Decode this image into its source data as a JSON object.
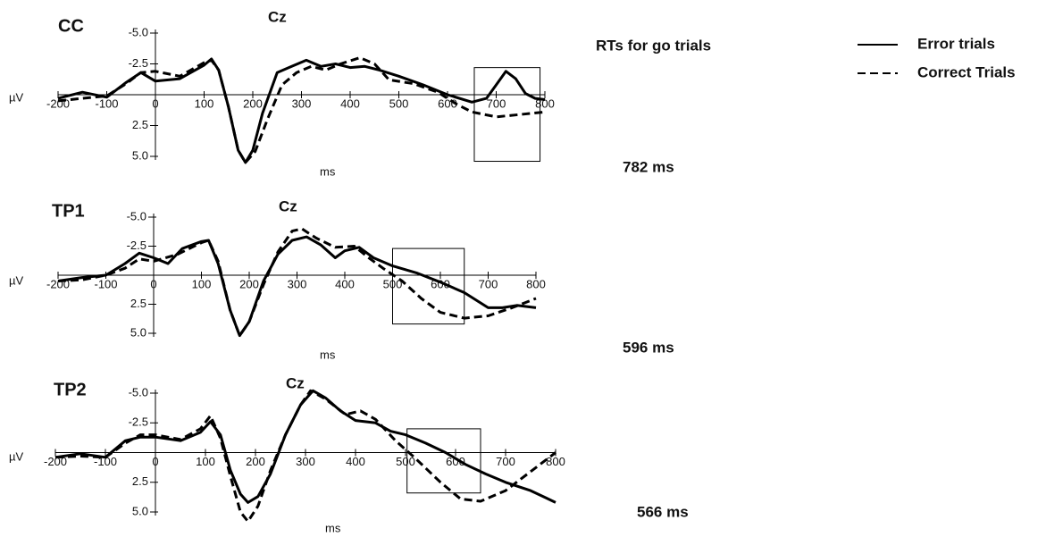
{
  "rt_heading": "RTs for go trials",
  "chart_data": [
    {
      "type": "line",
      "title": "CC",
      "channel": "Cz",
      "xlabel": "ms",
      "ylabel": "µV",
      "rt_label": "782 ms",
      "xlim": [
        -200,
        800
      ],
      "xticks": [
        -200,
        -100,
        0,
        100,
        200,
        300,
        400,
        500,
        600,
        700,
        800
      ],
      "ylim": [
        5,
        -5
      ],
      "yticks": [
        {
          "value": -5,
          "label": "-5.0"
        },
        -2.5,
        2.5,
        {
          "value": 5,
          "label": "5.0"
        }
      ],
      "highlight": {
        "x": [
          655,
          790
        ],
        "y": [
          -2.2,
          5.4
        ]
      },
      "series": [
        {
          "name": "Error trials",
          "color": "#000000",
          "dash": false,
          "x": [
            -200,
            -150,
            -100,
            -60,
            -30,
            0,
            50,
            100,
            115,
            130,
            150,
            170,
            185,
            200,
            220,
            250,
            280,
            310,
            340,
            370,
            400,
            430,
            460,
            500,
            550,
            600,
            650,
            680,
            700,
            720,
            740,
            760,
            780,
            800
          ],
          "values": [
            0.3,
            -0.2,
            0.2,
            -1.0,
            -1.8,
            -1.1,
            -1.3,
            -2.4,
            -2.9,
            -2.0,
            1.0,
            4.5,
            5.5,
            4.5,
            1.5,
            -1.8,
            -2.3,
            -2.8,
            -2.3,
            -2.5,
            -2.2,
            -2.3,
            -2.0,
            -1.5,
            -0.8,
            0,
            0.6,
            0.3,
            -0.8,
            -1.9,
            -1.3,
            -0.1,
            0.3,
            0.4
          ]
        },
        {
          "name": "Correct Trials",
          "color": "#000000",
          "dash": true,
          "x": [
            -200,
            -150,
            -100,
            -60,
            -30,
            0,
            50,
            100,
            115,
            130,
            150,
            170,
            185,
            205,
            230,
            260,
            290,
            320,
            350,
            380,
            420,
            450,
            480,
            530,
            580,
            620,
            650,
            700,
            750,
            800
          ],
          "values": [
            0.5,
            0.3,
            0.1,
            -0.9,
            -1.8,
            -1.9,
            -1.5,
            -2.6,
            -2.8,
            -2.0,
            1.0,
            4.5,
            5.5,
            4.6,
            2.0,
            -0.8,
            -1.8,
            -2.3,
            -2.0,
            -2.5,
            -3.0,
            -2.5,
            -1.2,
            -0.9,
            -0.2,
            0.8,
            1.4,
            1.8,
            1.6,
            1.4
          ]
        }
      ]
    },
    {
      "type": "line",
      "title": "TP1",
      "channel": "Cz",
      "xlabel": "ms",
      "ylabel": "µV",
      "rt_label": "596 ms",
      "xlim": [
        -200,
        800
      ],
      "xticks": [
        -200,
        -100,
        0,
        100,
        200,
        300,
        400,
        500,
        600,
        700,
        800
      ],
      "ylim": [
        5,
        -5
      ],
      "yticks": [
        {
          "value": -5,
          "label": "-5.0"
        },
        -2.5,
        2.5,
        {
          "value": 5,
          "label": "5.0"
        }
      ],
      "highlight": {
        "x": [
          500,
          650
        ],
        "y": [
          -2.3,
          4.2
        ]
      },
      "series": [
        {
          "color": "#000000",
          "dash": false,
          "x": [
            -200,
            -150,
            -100,
            -60,
            -30,
            0,
            30,
            60,
            100,
            115,
            135,
            160,
            180,
            200,
            230,
            260,
            290,
            320,
            350,
            380,
            400,
            430,
            460,
            500,
            550,
            600,
            650,
            700,
            730,
            760,
            800
          ],
          "values": [
            0.5,
            0.2,
            0,
            -1.0,
            -1.9,
            -1.5,
            -1.0,
            -2.3,
            -2.9,
            -3.0,
            -1.0,
            3.0,
            5.2,
            4.0,
            0.5,
            -1.8,
            -3.0,
            -3.3,
            -2.6,
            -1.5,
            -2.1,
            -2.4,
            -1.5,
            -0.8,
            -0.2,
            0.6,
            1.5,
            2.8,
            2.8,
            2.6,
            2.8
          ]
        },
        {
          "color": "#000000",
          "dash": true,
          "x": [
            -200,
            -150,
            -100,
            -60,
            -30,
            0,
            50,
            100,
            115,
            135,
            160,
            180,
            200,
            230,
            260,
            290,
            310,
            340,
            380,
            420,
            450,
            480,
            520,
            560,
            600,
            650,
            700,
            750,
            800
          ],
          "values": [
            0.5,
            0.4,
            0,
            -0.6,
            -1.4,
            -1.2,
            -1.8,
            -2.8,
            -3.0,
            -1.2,
            3.0,
            5.2,
            4.0,
            0.8,
            -2.0,
            -3.8,
            -4.0,
            -3.2,
            -2.4,
            -2.5,
            -1.5,
            -0.6,
            0.5,
            2.0,
            3.2,
            3.7,
            3.5,
            2.8,
            2.0
          ]
        }
      ]
    },
    {
      "type": "line",
      "title": "TP2",
      "channel": "Cz",
      "xlabel": "ms",
      "ylabel": "µV",
      "rt_label": "566 ms",
      "xlim": [
        -200,
        800
      ],
      "xticks": [
        -200,
        -100,
        0,
        100,
        200,
        300,
        400,
        500,
        600,
        700,
        800
      ],
      "ylim": [
        5,
        -5
      ],
      "yticks": [
        {
          "value": -5,
          "label": "-5.0"
        },
        -2.5,
        2.5,
        {
          "value": 5,
          "label": "5.0"
        }
      ],
      "highlight": {
        "x": [
          503,
          650
        ],
        "y": [
          -2.0,
          3.4
        ]
      },
      "series": [
        {
          "color": "#000000",
          "dash": false,
          "x": [
            -200,
            -150,
            -100,
            -60,
            -30,
            0,
            50,
            90,
            110,
            130,
            150,
            170,
            185,
            205,
            230,
            260,
            290,
            315,
            340,
            370,
            400,
            440,
            470,
            500,
            540,
            580,
            620,
            660,
            700,
            750,
            780,
            800
          ],
          "values": [
            0.4,
            0.1,
            0.4,
            -1.0,
            -1.3,
            -1.3,
            -1.0,
            -1.7,
            -2.6,
            -1.5,
            1.5,
            3.5,
            4.2,
            3.7,
            1.8,
            -1.5,
            -4.0,
            -5.2,
            -4.6,
            -3.5,
            -2.7,
            -2.5,
            -1.8,
            -1.5,
            -0.8,
            0,
            1.0,
            1.8,
            2.5,
            3.2,
            3.8,
            4.2
          ]
        },
        {
          "color": "#000000",
          "dash": true,
          "x": [
            -200,
            -150,
            -100,
            -60,
            -30,
            0,
            50,
            90,
            110,
            130,
            150,
            170,
            185,
            205,
            230,
            260,
            290,
            310,
            340,
            380,
            410,
            440,
            480,
            520,
            570,
            610,
            650,
            700,
            750,
            800
          ],
          "values": [
            0.4,
            0.3,
            0.4,
            -0.8,
            -1.5,
            -1.5,
            -1.1,
            -2.0,
            -3.1,
            -1.2,
            2.0,
            5.0,
            5.8,
            4.5,
            1.5,
            -1.5,
            -4.0,
            -5.2,
            -4.5,
            -3.2,
            -3.5,
            -2.8,
            -1.0,
            0.5,
            2.5,
            3.9,
            4.1,
            3.2,
            1.6,
            0
          ]
        }
      ]
    }
  ]
}
